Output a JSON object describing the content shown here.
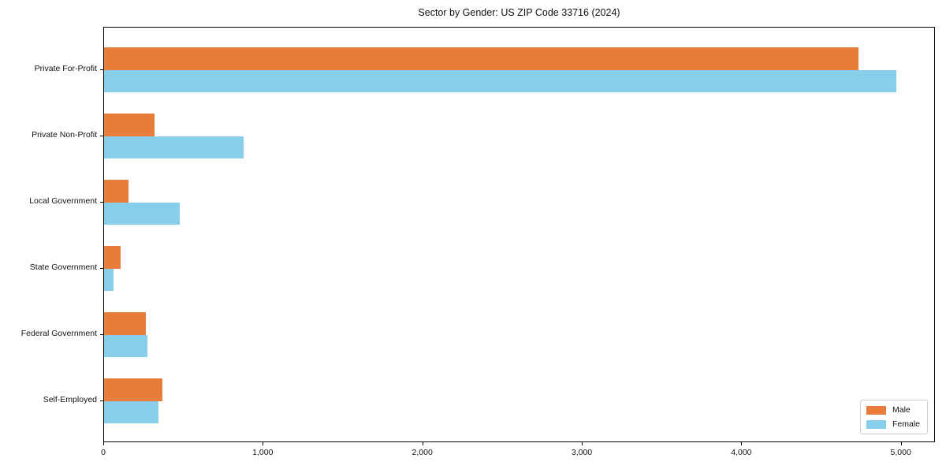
{
  "title": "Sector by Gender: US ZIP Code 33716 (2024)",
  "chart_data": {
    "type": "bar",
    "orientation": "horizontal",
    "title": "Sector by Gender: US ZIP Code 33716 (2024)",
    "xlabel": "",
    "ylabel": "",
    "categories": [
      "Private For-Profit",
      "Private Non-Profit",
      "Local Government",
      "State Government",
      "Federal Government",
      "Self-Employed"
    ],
    "series": [
      {
        "name": "Male",
        "color": "#E77C3B",
        "values": [
          4728,
          318,
          155,
          105,
          262,
          364
        ]
      },
      {
        "name": "Female",
        "color": "#87CEEB",
        "values": [
          4966,
          873,
          474,
          58,
          273,
          342
        ]
      }
    ],
    "xlim": [
      0,
      5214
    ],
    "xticks": [
      0,
      1000,
      2000,
      3000,
      4000,
      5000
    ],
    "xtick_labels": [
      "0",
      "1,000",
      "2,000",
      "3,000",
      "4,000",
      "5,000"
    ],
    "grid": false,
    "legend_position": "lower right",
    "plot_border": "#000000"
  }
}
